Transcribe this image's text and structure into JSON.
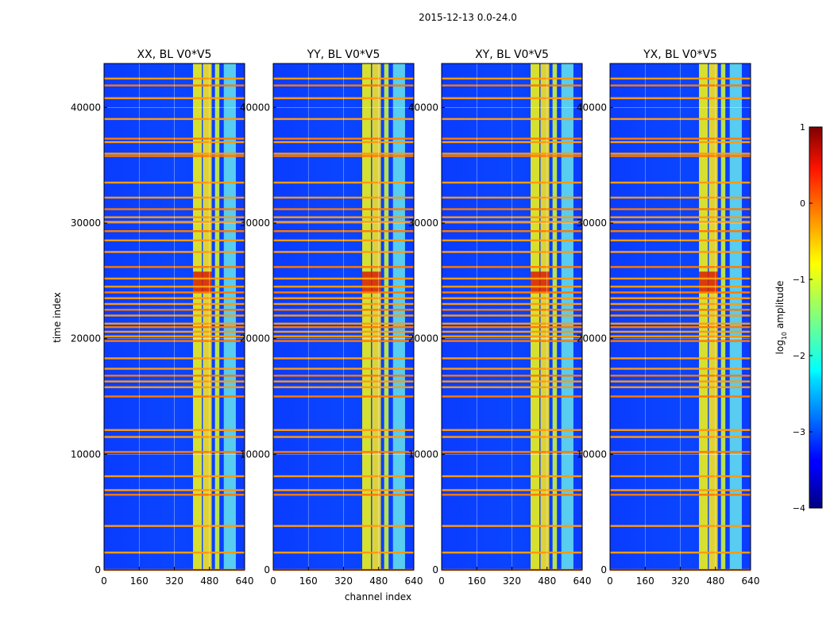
{
  "figure": {
    "suptitle": "2015-12-13 0.0-24.0",
    "xlabel": "channel index",
    "ylabel": "time index"
  },
  "chart_data": {
    "type": "heatmap",
    "colormap": "jet",
    "x_range": [
      0,
      640
    ],
    "y_range": [
      0,
      43800
    ],
    "x_ticks": [
      0,
      160,
      320,
      480,
      640
    ],
    "y_ticks": [
      0,
      10000,
      20000,
      30000,
      40000
    ],
    "grid": true,
    "panels": [
      {
        "title": "XX, BL V0*V5"
      },
      {
        "title": "YY, BL V0*V5"
      },
      {
        "title": "XY, BL V0*V5"
      },
      {
        "title": "YX, BL V0*V5"
      }
    ],
    "rfi_channel_bands": [
      [
        405,
        445
      ],
      [
        450,
        490
      ],
      [
        505,
        525
      ],
      [
        545,
        600
      ]
    ],
    "flagged_time_rows": [
      0,
      1500,
      3800,
      6500,
      6900,
      8100,
      10200,
      11500,
      12100,
      15000,
      15800,
      16300,
      16800,
      17400,
      18300,
      19800,
      20200,
      20600,
      21000,
      21300,
      22000,
      22500,
      23000,
      23500,
      24000,
      24500,
      25200,
      26200,
      27500,
      28500,
      29300,
      30100,
      30500,
      31200,
      32200,
      33500,
      35800,
      36000,
      37000,
      37300,
      39000,
      40800,
      41900,
      42500
    ],
    "colorbar": {
      "label_prefix": "log",
      "label_sub": "10",
      "label_suffix": " amplitude",
      "range": [
        -4,
        1
      ],
      "ticks": [
        "1",
        "0",
        "−1",
        "−2",
        "−3",
        "−4"
      ]
    }
  }
}
